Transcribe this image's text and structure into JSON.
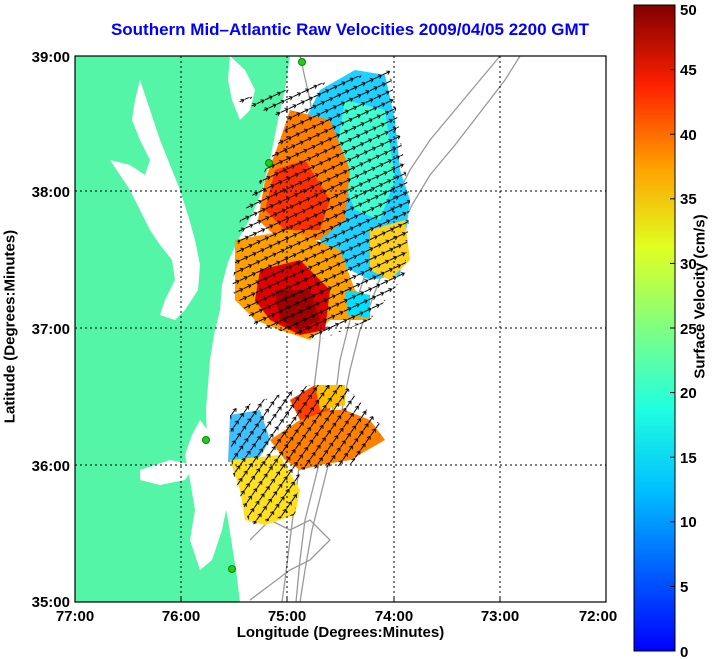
{
  "title": "Southern Mid–Atlantic Raw Velocities 2009/04/05 2200 GMT",
  "x_axis": {
    "label": "Longitude (Degrees:Minutes)",
    "ticks": [
      "77:00",
      "76:00",
      "75:00",
      "74:00",
      "73:00",
      "72:00"
    ]
  },
  "y_axis": {
    "label": "Latitude (Degrees:Minutes)",
    "ticks": [
      "39:00",
      "38:00",
      "37:00",
      "36:00",
      "35:00"
    ]
  },
  "colorbar": {
    "label": "Surface Velocity (cm/s)",
    "ticks": [
      "0",
      "5",
      "10",
      "15",
      "20",
      "25",
      "30",
      "35",
      "40",
      "45",
      "50"
    ],
    "min": 0,
    "max": 50
  },
  "colors": {
    "land": "#55f5a8",
    "title": "#0000ff",
    "bathymetry": "#999999",
    "station": "#22cc22"
  }
}
